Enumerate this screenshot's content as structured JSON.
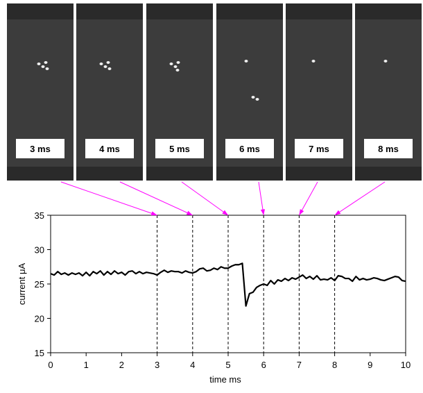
{
  "frames": [
    "3 ms",
    "4 ms",
    "5 ms",
    "6 ms",
    "7 ms",
    "8 ms"
  ],
  "chart_data": {
    "type": "line",
    "xlabel": "time ms",
    "ylabel": "current μA",
    "x": [
      0,
      0.1,
      0.2,
      0.3,
      0.4,
      0.5,
      0.6,
      0.7,
      0.8,
      0.9,
      1,
      1.1,
      1.2,
      1.3,
      1.4,
      1.5,
      1.6,
      1.7,
      1.8,
      1.9,
      2,
      2.1,
      2.2,
      2.3,
      2.4,
      2.5,
      2.6,
      2.7,
      2.8,
      2.9,
      3,
      3.1,
      3.2,
      3.3,
      3.4,
      3.5,
      3.6,
      3.7,
      3.8,
      3.9,
      4,
      4.1,
      4.2,
      4.3,
      4.4,
      4.5,
      4.6,
      4.7,
      4.8,
      4.9,
      5,
      5.1,
      5.2,
      5.3,
      5.4,
      5.5,
      5.6,
      5.7,
      5.8,
      5.9,
      6,
      6.1,
      6.2,
      6.3,
      6.4,
      6.5,
      6.6,
      6.7,
      6.8,
      6.9,
      7,
      7.1,
      7.2,
      7.3,
      7.4,
      7.5,
      7.6,
      7.7,
      7.8,
      7.9,
      8,
      8.1,
      8.2,
      8.3,
      8.4,
      8.5,
      8.6,
      8.7,
      8.8,
      8.9,
      9,
      9.1,
      9.2,
      9.3,
      9.4,
      9.5,
      9.6,
      9.7,
      9.8,
      9.9,
      10
    ],
    "values": [
      26.5,
      26.3,
      26.8,
      26.4,
      26.6,
      26.3,
      26.6,
      26.4,
      26.6,
      26.2,
      26.7,
      26.2,
      26.8,
      26.5,
      26.9,
      26.3,
      26.8,
      26.4,
      26.9,
      26.5,
      26.7,
      26.3,
      26.8,
      26.9,
      26.5,
      26.8,
      26.5,
      26.7,
      26.6,
      26.5,
      26.3,
      26.7,
      27.0,
      26.7,
      26.9,
      26.8,
      26.8,
      26.6,
      26.9,
      26.7,
      26.6,
      26.8,
      27.2,
      27.3,
      26.9,
      27.0,
      27.3,
      27.1,
      27.5,
      27.3,
      27.3,
      27.6,
      27.8,
      27.8,
      28.0,
      21.8,
      23.6,
      23.8,
      24.5,
      24.8,
      25.0,
      24.8,
      25.5,
      25.0,
      25.6,
      25.4,
      25.8,
      25.5,
      25.9,
      25.7,
      26.0,
      26.3,
      25.8,
      26.1,
      25.7,
      26.2,
      25.6,
      25.7,
      25.6,
      25.9,
      25.5,
      26.2,
      26.1,
      25.8,
      25.8,
      25.4,
      26.1,
      25.6,
      25.8,
      25.6,
      25.7,
      25.9,
      25.8,
      25.6,
      25.5,
      25.7,
      25.9,
      26.1,
      26.0,
      25.5,
      25.4
    ],
    "color": "#000000",
    "markers": [
      3,
      4,
      5,
      6,
      7,
      8
    ],
    "arrow_color": "#ff00ff",
    "xlim": [
      0,
      10
    ],
    "xticks": [
      0,
      1,
      2,
      3,
      4,
      5,
      6,
      7,
      8,
      9,
      10
    ],
    "ylim": [
      15,
      35
    ],
    "yticks": [
      15,
      20,
      25,
      30,
      35
    ]
  }
}
